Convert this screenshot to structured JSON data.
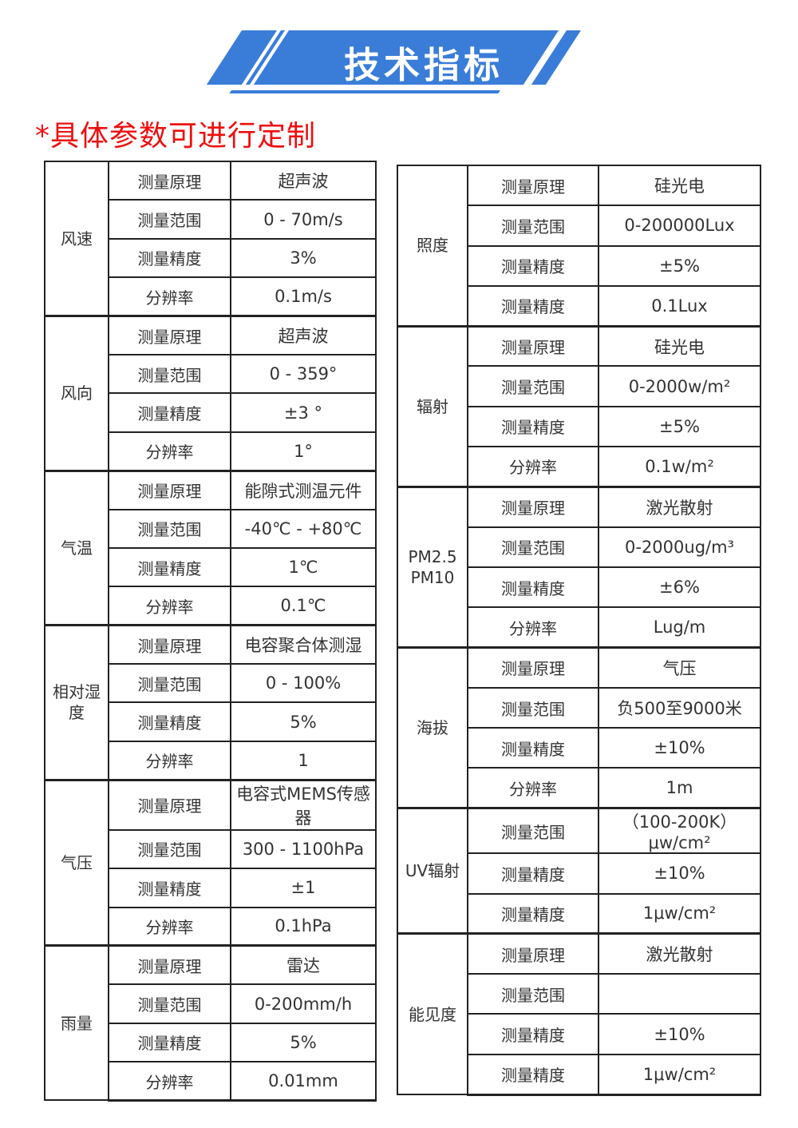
{
  "banner": {
    "title": "技术指标"
  },
  "note": "*具体参数可进行定制",
  "colors": {
    "banner_blue": "#3a7dd9",
    "note_red": "#ee0f0f",
    "table_border": "#222222",
    "table_text": "#333333"
  },
  "tables": {
    "left": {
      "groups": [
        {
          "category": "风速",
          "rows": [
            {
              "label": "测量原理",
              "value": "超声波"
            },
            {
              "label": "测量范围",
              "value": "0 - 70m/s"
            },
            {
              "label": "测量精度",
              "value": "3%"
            },
            {
              "label": "分辨率",
              "value": "0.1m/s"
            }
          ]
        },
        {
          "category": "风向",
          "rows": [
            {
              "label": "测量原理",
              "value": "超声波"
            },
            {
              "label": "测量范围",
              "value": "0 - 359°"
            },
            {
              "label": "测量精度",
              "value": "±3 °"
            },
            {
              "label": "分辨率",
              "value": "1°"
            }
          ]
        },
        {
          "category": "气温",
          "rows": [
            {
              "label": "测量原理",
              "value": "能隙式测温元件"
            },
            {
              "label": "测量范围",
              "value": "-40℃ - +80℃"
            },
            {
              "label": "测量精度",
              "value": "1℃"
            },
            {
              "label": "分辨率",
              "value": "0.1℃"
            }
          ]
        },
        {
          "category": "相对湿度",
          "rows": [
            {
              "label": "测量原理",
              "value": "电容聚合体测湿"
            },
            {
              "label": "测量范围",
              "value": "0 - 100%"
            },
            {
              "label": "测量精度",
              "value": "5%"
            },
            {
              "label": "分辨率",
              "value": "1"
            }
          ]
        },
        {
          "category": "气压",
          "rows": [
            {
              "label": "测量原理",
              "value": "电容式MEMS传感器"
            },
            {
              "label": "测量范围",
              "value": "300 - 1100hPa"
            },
            {
              "label": "测量精度",
              "value": "±1"
            },
            {
              "label": "分辨率",
              "value": "0.1hPa"
            }
          ]
        },
        {
          "category": "雨量",
          "rows": [
            {
              "label": "测量原理",
              "value": "雷达"
            },
            {
              "label": "测量范围",
              "value": "0-200mm/h"
            },
            {
              "label": "测量精度",
              "value": "5%"
            },
            {
              "label": "分辨率",
              "value": "0.01mm"
            }
          ]
        }
      ]
    },
    "right": {
      "groups": [
        {
          "category": "照度",
          "rows": [
            {
              "label": "测量原理",
              "value": "硅光电"
            },
            {
              "label": "测量范围",
              "value": "0-200000Lux"
            },
            {
              "label": "测量精度",
              "value": "±5%"
            },
            {
              "label": "测量精度",
              "value": "0.1Lux"
            }
          ]
        },
        {
          "category": "辐射",
          "rows": [
            {
              "label": "测量原理",
              "value": "硅光电"
            },
            {
              "label": "测量范围",
              "value": "0-2000w/m²"
            },
            {
              "label": "测量精度",
              "value": "±5%"
            },
            {
              "label": "分辨率",
              "value": "0.1w/m²"
            }
          ]
        },
        {
          "category": "PM2.5\nPM10",
          "rows": [
            {
              "label": "测量原理",
              "value": "激光散射"
            },
            {
              "label": "测量范围",
              "value": "0-2000ug/m³"
            },
            {
              "label": "测量精度",
              "value": "±6%"
            },
            {
              "label": "分辨率",
              "value": "Lug/m"
            }
          ]
        },
        {
          "category": "海拔",
          "rows": [
            {
              "label": "测量原理",
              "value": "气压"
            },
            {
              "label": "测量范围",
              "value": "负500至9000米"
            },
            {
              "label": "测量精度",
              "value": "±10%"
            },
            {
              "label": "分辨率",
              "value": "1m"
            }
          ]
        },
        {
          "category": "UV辐射",
          "rows": [
            {
              "label": "测量范围",
              "value": "（100-200K）μw/cm²"
            },
            {
              "label": "测量精度",
              "value": "±10%"
            },
            {
              "label": "测量精度",
              "value": "1μw/cm²"
            }
          ]
        },
        {
          "category": "能见度",
          "rows": [
            {
              "label": "测量原理",
              "value": "激光散射"
            },
            {
              "label": "测量范围",
              "value": ""
            },
            {
              "label": "测量精度",
              "value": "±10%"
            },
            {
              "label": "测量精度",
              "value": "1μw/cm²"
            }
          ]
        }
      ]
    }
  }
}
